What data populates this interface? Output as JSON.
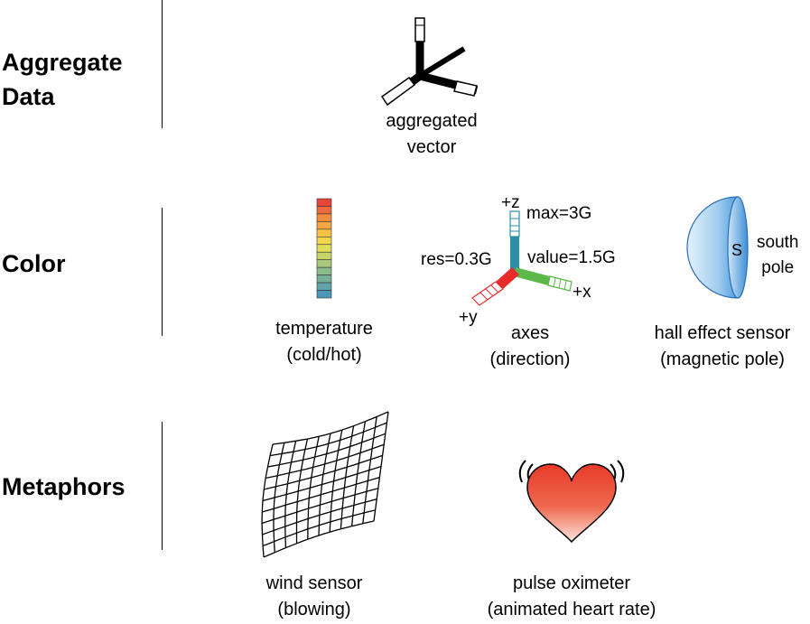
{
  "sections": {
    "aggregate": {
      "line1": "Aggregate",
      "line2": "Data"
    },
    "color": {
      "title": "Color"
    },
    "metaphors": {
      "title": "Metaphors"
    }
  },
  "aggregate_vector": {
    "caption_line1": "aggregated",
    "caption_line2": "vector"
  },
  "temperature": {
    "caption_line1": "temperature",
    "caption_line2": "(cold/hot)",
    "scale_colors": [
      "#e8453a",
      "#ee6a3c",
      "#f28c3f",
      "#f6a642",
      "#f8c247",
      "#f2d64d",
      "#e0dc5a",
      "#c6d46a",
      "#a8c97a",
      "#8cbc8a",
      "#74b09a",
      "#5ea4aa",
      "#4a98b8"
    ]
  },
  "axes": {
    "caption_line1": "axes",
    "caption_line2": "(direction)",
    "z_label": "+z",
    "x_label": "+x",
    "y_label": "+y",
    "max_label": "max=3G",
    "res_label": "res=0.3G",
    "value_label": "value=1.5G",
    "x_color": "#5cb848",
    "y_color": "#e82c2c",
    "z_color": "#2a90a8"
  },
  "hall_sensor": {
    "caption_line1": "hall effect sensor",
    "caption_line2": "(magnetic pole)",
    "pole_letter": "S",
    "side_line1": "south",
    "side_line2": "pole",
    "color": "#4f9fe0"
  },
  "wind_sensor": {
    "caption_line1": "wind sensor",
    "caption_line2": "(blowing)"
  },
  "pulse": {
    "caption_line1": "pulse oximeter",
    "caption_line2": "(animated heart rate)",
    "color": "#e83a28"
  }
}
